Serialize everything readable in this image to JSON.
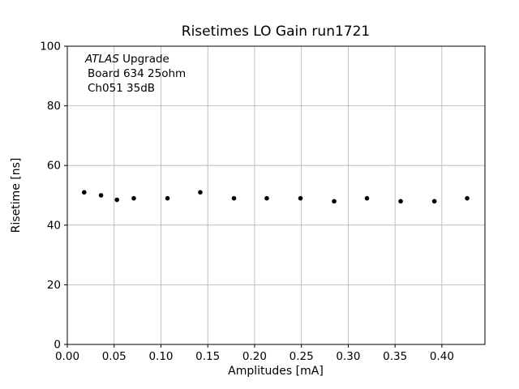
{
  "figure": {
    "title": "Risetimes LO Gain run1721",
    "xlabel": "Amplitudes [mA]",
    "ylabel": "Risetime [ns]"
  },
  "annotation": {
    "line1_italic": "ATLAS",
    "line1_rest": " Upgrade",
    "line2": "Board 634 25ohm",
    "line3": "Ch051 35dB"
  },
  "chart_data": {
    "type": "scatter",
    "title": "Risetimes LO Gain run1721",
    "xlabel": "Amplitudes [mA]",
    "ylabel": "Risetime [ns]",
    "xlim": [
      0,
      0.446
    ],
    "ylim": [
      0,
      100
    ],
    "grid": true,
    "legend": false,
    "marker_color": "#000000",
    "marker_radius": 2.8,
    "grid_color": "#b0b0b0",
    "x_ticks": [
      0.0,
      0.05,
      0.1,
      0.15,
      0.2,
      0.25,
      0.3,
      0.35,
      0.4
    ],
    "x_tick_labels": [
      "0.00",
      "0.05",
      "0.10",
      "0.15",
      "0.20",
      "0.25",
      "0.30",
      "0.35",
      "0.40"
    ],
    "y_ticks": [
      0,
      20,
      40,
      60,
      80,
      100
    ],
    "y_tick_labels": [
      "0",
      "20",
      "40",
      "60",
      "80",
      "100"
    ],
    "points": [
      [
        0.018,
        51
      ],
      [
        0.036,
        50
      ],
      [
        0.053,
        48.5
      ],
      [
        0.071,
        49
      ],
      [
        0.107,
        49
      ],
      [
        0.142,
        51
      ],
      [
        0.178,
        49
      ],
      [
        0.213,
        49
      ],
      [
        0.249,
        49
      ],
      [
        0.285,
        48
      ],
      [
        0.32,
        49
      ],
      [
        0.356,
        48
      ],
      [
        0.392,
        48
      ],
      [
        0.427,
        49
      ]
    ]
  }
}
